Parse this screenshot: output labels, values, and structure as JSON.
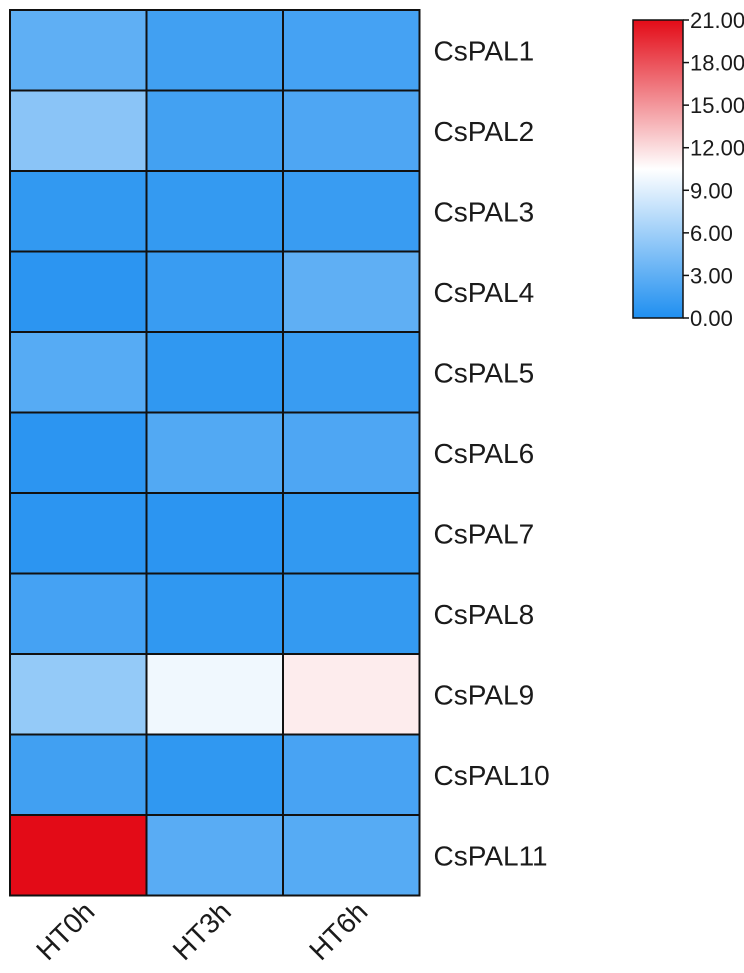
{
  "chart_data": {
    "type": "heatmap",
    "columns": [
      "HT0h",
      "HT3h",
      "HT6h"
    ],
    "rows": [
      "CsPAL1",
      "CsPAL2",
      "CsPAL3",
      "CsPAL4",
      "CsPAL5",
      "CsPAL6",
      "CsPAL7",
      "CsPAL8",
      "CsPAL9",
      "CsPAL10",
      "CsPAL11"
    ],
    "values": [
      [
        3.0,
        1.6,
        1.8
      ],
      [
        5.0,
        1.7,
        2.2
      ],
      [
        0.9,
        1.0,
        1.2
      ],
      [
        0.6,
        1.2,
        3.0
      ],
      [
        2.6,
        0.8,
        1.2
      ],
      [
        0.6,
        2.4,
        2.2
      ],
      [
        0.6,
        0.6,
        0.9
      ],
      [
        1.8,
        0.8,
        1.0
      ],
      [
        5.5,
        9.8,
        11.3
      ],
      [
        1.6,
        0.8,
        1.9
      ],
      [
        21.0,
        2.7,
        2.6
      ]
    ],
    "colorbar": {
      "min": 0,
      "max": 21,
      "ticks": [
        "21.00",
        "18.00",
        "15.00",
        "12.00",
        "9.00",
        "6.00",
        "3.00",
        "0.00"
      ],
      "tick_values": [
        21,
        18,
        15,
        12,
        9,
        6,
        3,
        0
      ],
      "colors": {
        "low": "#1f8ff0",
        "mid": "#ffffff",
        "high": "#e30b17"
      },
      "mid_value": 10.5,
      "placement": "top-right"
    }
  }
}
